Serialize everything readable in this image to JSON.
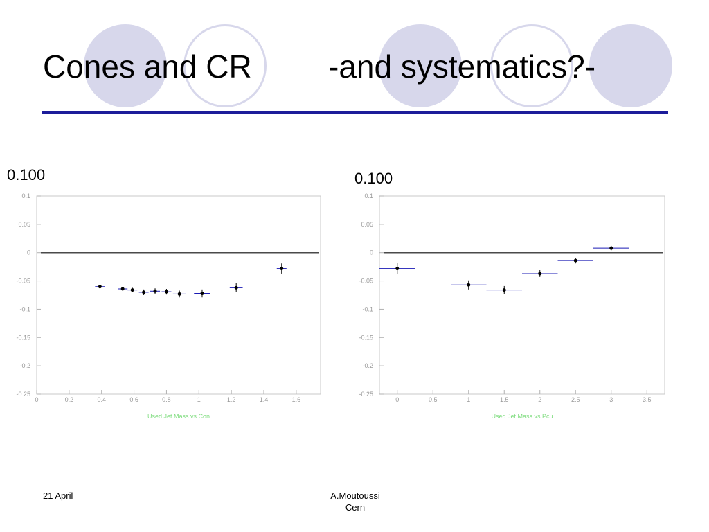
{
  "slide": {
    "title_left": "Cones and CR",
    "title_right": "-and systematics?-",
    "caption_left": "0.100",
    "caption_right": "0.100",
    "footer_date": "21 April",
    "footer_author_line1": "A.Moutoussi",
    "footer_author_line2": "Cern",
    "colors": {
      "title_rule": "#1c1c9a",
      "decor_circles": "#d7d7eb",
      "points": "#000000",
      "bin_bars": "#1a1ab4",
      "axis_label": "#7ddc7d"
    },
    "decor_circle_styles": [
      "filled",
      "outline",
      "filled",
      "outline",
      "filled"
    ]
  },
  "chart_data": [
    {
      "type": "scatter",
      "xlabel": "Used Jet Mass vs Con",
      "ylabel": "",
      "xlim": [
        0,
        1.75
      ],
      "ylim": [
        -0.25,
        0.1
      ],
      "x_ticks": [
        "0",
        "0.2",
        "0.4",
        "0.6",
        "0.8",
        "1",
        "1.2",
        "1.4",
        "1.6"
      ],
      "x_tick_values": [
        0,
        0.2,
        0.4,
        0.6,
        0.8,
        1.0,
        1.2,
        1.4,
        1.6
      ],
      "y_ticks": [
        "0.1",
        "0.05",
        "0",
        "-0.05",
        "-0.1",
        "-0.15",
        "-0.2",
        "-0.25"
      ],
      "y_tick_values": [
        0.1,
        0.05,
        0,
        -0.05,
        -0.1,
        -0.15,
        -0.2,
        -0.25
      ],
      "reference_line_y": 0,
      "grid": false,
      "series": [
        {
          "x": [
            0.39,
            0.53,
            0.59,
            0.66,
            0.73,
            0.8,
            0.88,
            1.02,
            1.23,
            1.51
          ],
          "y": [
            -0.06,
            -0.064,
            -0.066,
            -0.07,
            -0.068,
            -0.069,
            -0.073,
            -0.072,
            -0.062,
            -0.028
          ],
          "x_err": [
            0.03,
            0.03,
            0.03,
            0.03,
            0.03,
            0.03,
            0.04,
            0.05,
            0.04,
            0.03
          ],
          "y_err": [
            0.003,
            0.003,
            0.004,
            0.005,
            0.005,
            0.005,
            0.006,
            0.007,
            0.008,
            0.009
          ]
        }
      ]
    },
    {
      "type": "scatter",
      "xlabel": "Used Jet Mass vs Pcu",
      "ylabel": "",
      "xlim": [
        -0.25,
        3.75
      ],
      "ylim": [
        -0.25,
        0.1
      ],
      "x_ticks": [
        "0",
        "0.5",
        "1",
        "1.5",
        "2",
        "2.5",
        "3",
        "3.5"
      ],
      "x_tick_values": [
        0,
        0.5,
        1.0,
        1.5,
        2.0,
        2.5,
        3.0,
        3.5
      ],
      "y_ticks": [
        "0.1",
        "0.05",
        "0",
        "-0.05",
        "-0.1",
        "-0.15",
        "-0.2",
        "-0.25"
      ],
      "y_tick_values": [
        0.1,
        0.05,
        0,
        -0.05,
        -0.1,
        -0.15,
        -0.2,
        -0.25
      ],
      "reference_line_y": 0,
      "grid": false,
      "series": [
        {
          "x": [
            0,
            1.0,
            1.5,
            2.0,
            2.5,
            3.0
          ],
          "y": [
            -0.028,
            -0.057,
            -0.066,
            -0.037,
            -0.014,
            0.008
          ],
          "x_err": [
            0.25,
            0.25,
            0.25,
            0.25,
            0.25,
            0.25
          ],
          "y_err": [
            0.01,
            0.008,
            0.007,
            0.006,
            0.005,
            0.004
          ]
        }
      ]
    }
  ]
}
